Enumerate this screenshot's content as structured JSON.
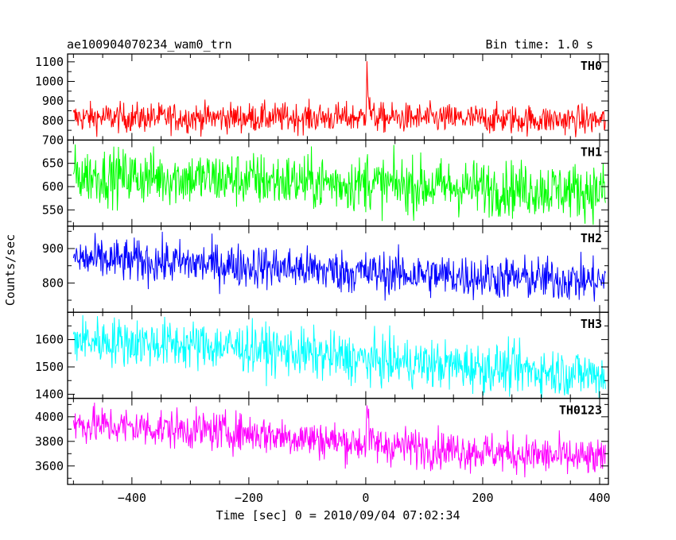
{
  "header": {
    "title": "ae100904070234_wam0_trn",
    "bin_time": "Bin time: 1.0 s"
  },
  "chart_data": {
    "type": "line",
    "xlabel": "Time [sec] 0 = 2010/09/04 07:02:34",
    "ylabel": "Counts/sec",
    "xlim": [
      -510,
      415
    ],
    "xticks": [
      -400,
      -200,
      0,
      200,
      400
    ],
    "x_range": [
      -500,
      410
    ],
    "bin_time_sec": 1.0,
    "panels": [
      {
        "name": "TH0",
        "color": "#ff0000",
        "ylim": [
          700,
          1140
        ],
        "yticks": [
          800,
          900,
          1000,
          1100
        ],
        "baseline": [
          [
            -500,
            815
          ],
          [
            -100,
            815
          ],
          [
            0,
            815
          ],
          [
            410,
            800
          ]
        ],
        "scatter": 38,
        "peak": {
          "x": 2,
          "value": 1135
        }
      },
      {
        "name": "TH1",
        "color": "#00ff00",
        "ylim": [
          515,
          700
        ],
        "yticks": [
          550,
          600,
          650,
          700
        ],
        "baseline": [
          [
            -500,
            625
          ],
          [
            -200,
            615
          ],
          [
            0,
            605
          ],
          [
            410,
            590
          ]
        ],
        "scatter": 30,
        "peak": {
          "x": 2,
          "value": 640
        }
      },
      {
        "name": "TH2",
        "color": "#0000ff",
        "ylim": [
          715,
          965
        ],
        "yticks": [
          800,
          900
        ],
        "baseline": [
          [
            -500,
            870
          ],
          [
            -200,
            850
          ],
          [
            0,
            830
          ],
          [
            410,
            805
          ]
        ],
        "scatter": 32,
        "peak": null
      },
      {
        "name": "TH3",
        "color": "#00ffff",
        "ylim": [
          1385,
          1700
        ],
        "yticks": [
          1400,
          1500,
          1600
        ],
        "baseline": [
          [
            -500,
            1600
          ],
          [
            -200,
            1570
          ],
          [
            0,
            1525
          ],
          [
            410,
            1470
          ]
        ],
        "scatter": 45,
        "peak": null
      },
      {
        "name": "TH0123",
        "color": "#ff00ff",
        "ylim": [
          3450,
          4150
        ],
        "yticks": [
          3600,
          3800,
          4000
        ],
        "baseline": [
          [
            -500,
            3940
          ],
          [
            -200,
            3870
          ],
          [
            0,
            3780
          ],
          [
            410,
            3650
          ]
        ],
        "scatter": 80,
        "peak": {
          "x": 2,
          "value": 4140
        }
      }
    ]
  }
}
